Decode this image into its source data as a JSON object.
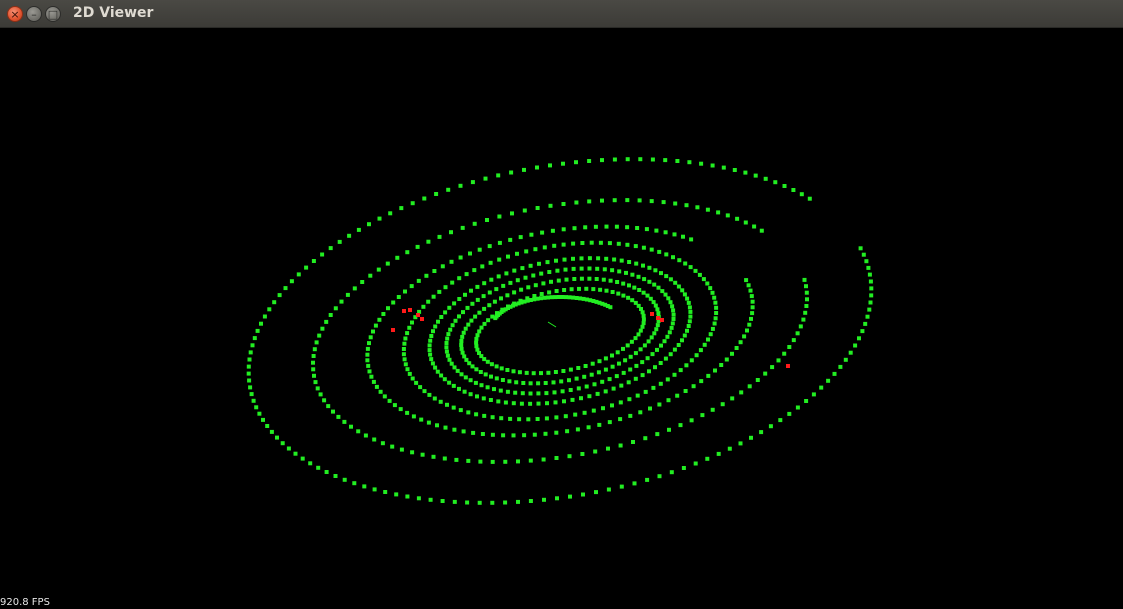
{
  "window": {
    "title": "2D Viewer",
    "close_glyph": "×",
    "minimize_glyph": "–",
    "maximize_glyph": "□"
  },
  "viewer": {
    "fps_text": "920.8 FPS",
    "background": "#000000",
    "point_color": "#22ee22",
    "highlight_color": "#ff1a1a"
  },
  "icons": {
    "close": "close-icon",
    "minimize": "minimize-icon",
    "maximize": "maximize-icon"
  }
}
